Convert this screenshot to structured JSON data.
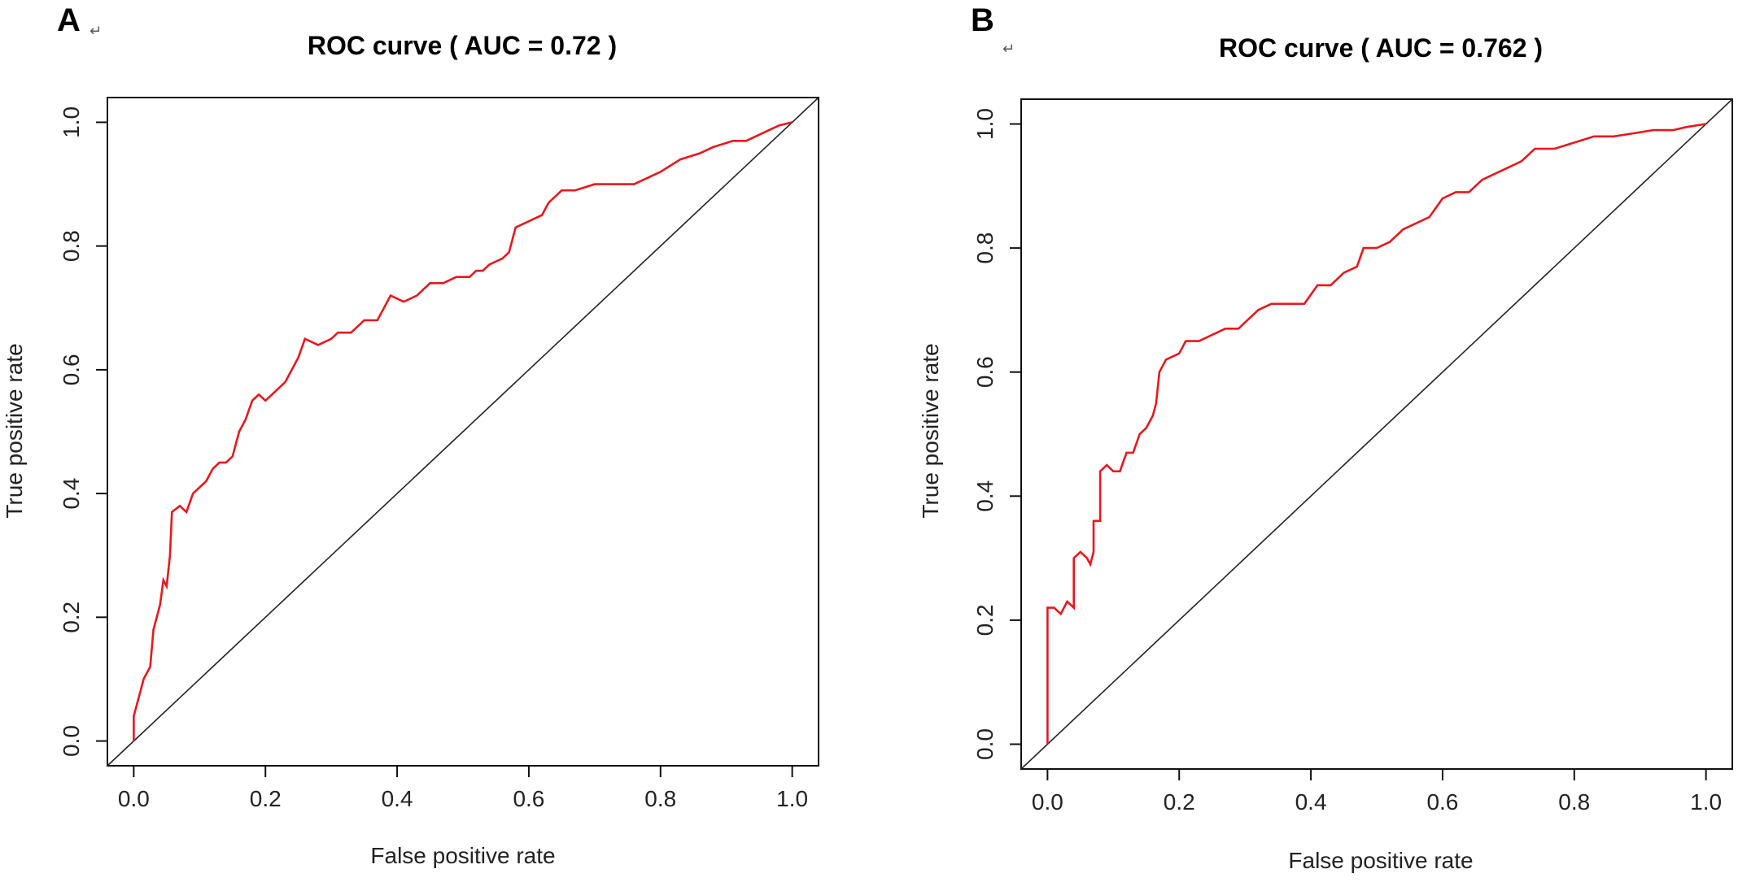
{
  "chart_data": [
    {
      "panel_label": "A",
      "panel_mark": "↵",
      "type": "line",
      "title": "ROC curve ( AUC =  0.72 )",
      "xlabel": "False positive rate",
      "ylabel": "True positive rate",
      "xlim": [
        -0.04,
        1.04
      ],
      "ylim": [
        -0.04,
        1.04
      ],
      "x_ticks": [
        "0.0",
        "0.2",
        "0.4",
        "0.6",
        "0.8",
        "1.0"
      ],
      "y_ticks": [
        "0.0",
        "0.2",
        "0.4",
        "0.6",
        "0.8",
        "1.0"
      ],
      "diagonal": true,
      "line_color": "#e8181d",
      "series": [
        {
          "name": "ROC",
          "points": [
            [
              0,
              0
            ],
            [
              0,
              0.04
            ],
            [
              0.005,
              0.06
            ],
            [
              0.01,
              0.08
            ],
            [
              0.015,
              0.1
            ],
            [
              0.025,
              0.12
            ],
            [
              0.03,
              0.18
            ],
            [
              0.04,
              0.22
            ],
            [
              0.045,
              0.26
            ],
            [
              0.05,
              0.25
            ],
            [
              0.055,
              0.3
            ],
            [
              0.058,
              0.37
            ],
            [
              0.07,
              0.38
            ],
            [
              0.08,
              0.37
            ],
            [
              0.09,
              0.4
            ],
            [
              0.1,
              0.41
            ],
            [
              0.11,
              0.42
            ],
            [
              0.12,
              0.44
            ],
            [
              0.13,
              0.45
            ],
            [
              0.14,
              0.45
            ],
            [
              0.15,
              0.46
            ],
            [
              0.16,
              0.5
            ],
            [
              0.17,
              0.52
            ],
            [
              0.18,
              0.55
            ],
            [
              0.19,
              0.56
            ],
            [
              0.2,
              0.55
            ],
            [
              0.21,
              0.56
            ],
            [
              0.22,
              0.57
            ],
            [
              0.23,
              0.58
            ],
            [
              0.24,
              0.6
            ],
            [
              0.25,
              0.62
            ],
            [
              0.26,
              0.65
            ],
            [
              0.28,
              0.64
            ],
            [
              0.3,
              0.65
            ],
            [
              0.31,
              0.66
            ],
            [
              0.33,
              0.66
            ],
            [
              0.35,
              0.68
            ],
            [
              0.37,
              0.68
            ],
            [
              0.39,
              0.72
            ],
            [
              0.41,
              0.71
            ],
            [
              0.43,
              0.72
            ],
            [
              0.45,
              0.74
            ],
            [
              0.47,
              0.74
            ],
            [
              0.49,
              0.75
            ],
            [
              0.51,
              0.75
            ],
            [
              0.52,
              0.76
            ],
            [
              0.53,
              0.76
            ],
            [
              0.54,
              0.77
            ],
            [
              0.56,
              0.78
            ],
            [
              0.57,
              0.79
            ],
            [
              0.58,
              0.83
            ],
            [
              0.6,
              0.84
            ],
            [
              0.62,
              0.85
            ],
            [
              0.63,
              0.87
            ],
            [
              0.65,
              0.89
            ],
            [
              0.67,
              0.89
            ],
            [
              0.7,
              0.9
            ],
            [
              0.73,
              0.9
            ],
            [
              0.76,
              0.9
            ],
            [
              0.78,
              0.91
            ],
            [
              0.8,
              0.92
            ],
            [
              0.83,
              0.94
            ],
            [
              0.86,
              0.95
            ],
            [
              0.88,
              0.96
            ],
            [
              0.91,
              0.97
            ],
            [
              0.93,
              0.97
            ],
            [
              0.95,
              0.98
            ],
            [
              0.97,
              0.99
            ],
            [
              0.98,
              0.995
            ],
            [
              1.0,
              1.0
            ]
          ]
        }
      ]
    },
    {
      "panel_label": "B",
      "panel_mark": "↵",
      "type": "line",
      "title": "ROC curve ( AUC =  0.762 )",
      "xlabel": "False positive rate",
      "ylabel": "True positive rate",
      "xlim": [
        -0.04,
        1.04
      ],
      "ylim": [
        -0.04,
        1.04
      ],
      "x_ticks": [
        "0.0",
        "0.2",
        "0.4",
        "0.6",
        "0.8",
        "1.0"
      ],
      "y_ticks": [
        "0.0",
        "0.2",
        "0.4",
        "0.6",
        "0.8",
        "1.0"
      ],
      "diagonal": true,
      "line_color": "#e8181d",
      "series": [
        {
          "name": "ROC",
          "points": [
            [
              0,
              0
            ],
            [
              0,
              0.22
            ],
            [
              0.01,
              0.22
            ],
            [
              0.02,
              0.21
            ],
            [
              0.03,
              0.23
            ],
            [
              0.04,
              0.22
            ],
            [
              0.04,
              0.3
            ],
            [
              0.05,
              0.31
            ],
            [
              0.06,
              0.3
            ],
            [
              0.065,
              0.29
            ],
            [
              0.07,
              0.31
            ],
            [
              0.07,
              0.36
            ],
            [
              0.08,
              0.36
            ],
            [
              0.08,
              0.44
            ],
            [
              0.09,
              0.45
            ],
            [
              0.1,
              0.44
            ],
            [
              0.11,
              0.44
            ],
            [
              0.12,
              0.47
            ],
            [
              0.13,
              0.47
            ],
            [
              0.14,
              0.5
            ],
            [
              0.15,
              0.51
            ],
            [
              0.16,
              0.53
            ],
            [
              0.165,
              0.55
            ],
            [
              0.17,
              0.6
            ],
            [
              0.18,
              0.62
            ],
            [
              0.2,
              0.63
            ],
            [
              0.21,
              0.65
            ],
            [
              0.23,
              0.65
            ],
            [
              0.25,
              0.66
            ],
            [
              0.27,
              0.67
            ],
            [
              0.29,
              0.67
            ],
            [
              0.3,
              0.68
            ],
            [
              0.32,
              0.7
            ],
            [
              0.34,
              0.71
            ],
            [
              0.36,
              0.71
            ],
            [
              0.39,
              0.71
            ],
            [
              0.41,
              0.74
            ],
            [
              0.43,
              0.74
            ],
            [
              0.45,
              0.76
            ],
            [
              0.47,
              0.77
            ],
            [
              0.48,
              0.8
            ],
            [
              0.5,
              0.8
            ],
            [
              0.52,
              0.81
            ],
            [
              0.54,
              0.83
            ],
            [
              0.56,
              0.84
            ],
            [
              0.58,
              0.85
            ],
            [
              0.6,
              0.88
            ],
            [
              0.62,
              0.89
            ],
            [
              0.64,
              0.89
            ],
            [
              0.66,
              0.91
            ],
            [
              0.68,
              0.92
            ],
            [
              0.7,
              0.93
            ],
            [
              0.72,
              0.94
            ],
            [
              0.74,
              0.96
            ],
            [
              0.77,
              0.96
            ],
            [
              0.8,
              0.97
            ],
            [
              0.83,
              0.98
            ],
            [
              0.86,
              0.98
            ],
            [
              0.89,
              0.985
            ],
            [
              0.92,
              0.99
            ],
            [
              0.95,
              0.99
            ],
            [
              0.97,
              0.995
            ],
            [
              1.0,
              1.0
            ]
          ]
        }
      ]
    }
  ]
}
